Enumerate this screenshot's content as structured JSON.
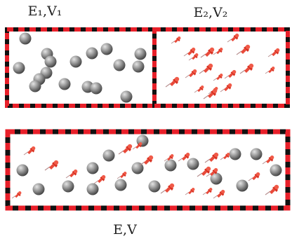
{
  "labels": {
    "left": "E₁,V₁",
    "right": "E₂,V₂",
    "combined": "E,V"
  }
}
